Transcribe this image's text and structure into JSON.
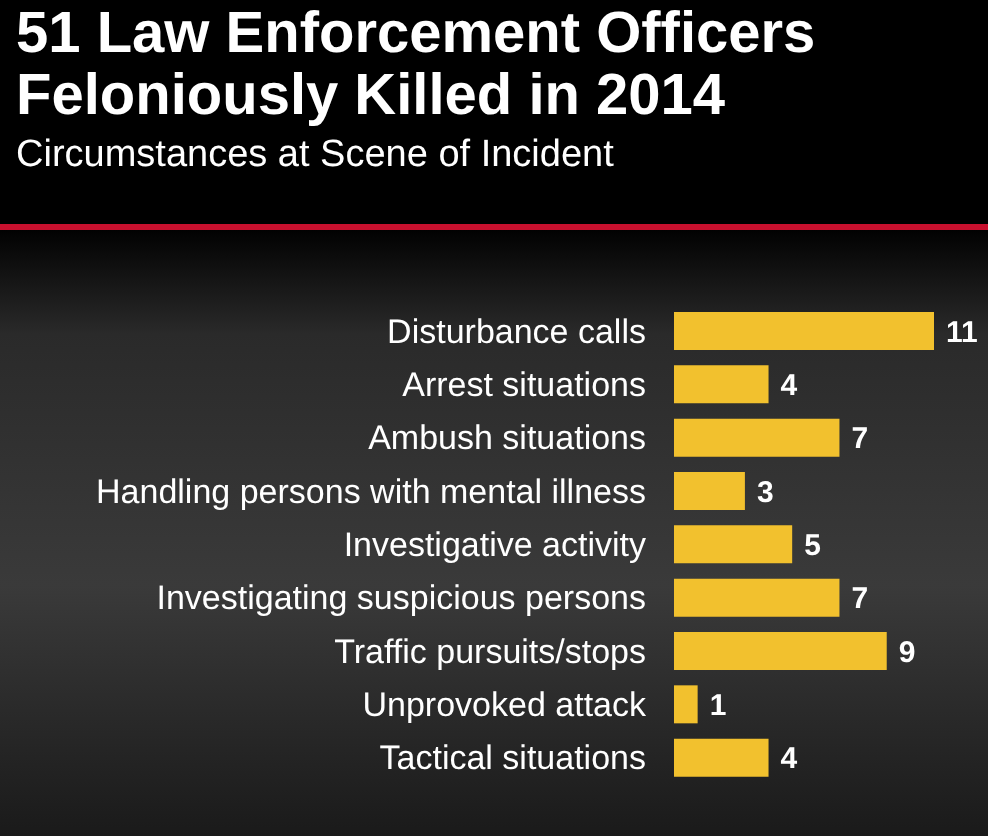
{
  "chart_data": {
    "type": "bar",
    "orientation": "horizontal",
    "title": "51 Law Enforcement Officers Feloniously Killed in 2014",
    "subtitle": "Circumstances at Scene of Incident",
    "categories": [
      "Disturbance calls",
      "Arrest situations",
      "Ambush situations",
      "Handling persons with mental illness",
      "Investigative activity",
      "Investigating suspicious persons",
      "Traffic pursuits/stops",
      "Unprovoked attack",
      "Tactical situations"
    ],
    "values": [
      11,
      4,
      7,
      3,
      5,
      7,
      9,
      1,
      4
    ],
    "color": "#f2c12e",
    "data_labels": true
  }
}
